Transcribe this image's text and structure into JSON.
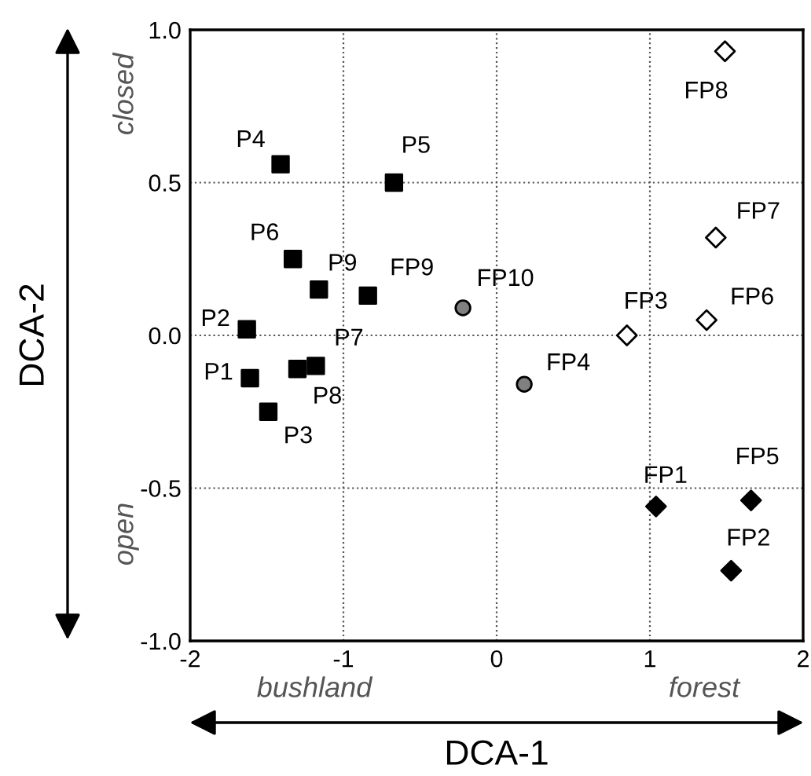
{
  "chart_data": {
    "type": "scatter",
    "xlabel": "DCA-1",
    "ylabel": "DCA-2",
    "xlim": [
      -2,
      2
    ],
    "xticks": [
      -2,
      -1,
      0,
      1,
      2
    ],
    "ylim": [
      -1.0,
      1.0
    ],
    "yticks": [
      {
        "value": -1.0,
        "label": "-1.0"
      },
      {
        "value": -0.5,
        "label": "-0.5"
      },
      {
        "value": 0.0,
        "label": "0.0"
      },
      {
        "value": 0.5,
        "label": "0.5"
      },
      {
        "value": 1.0,
        "label": "1.0"
      }
    ],
    "grid": true,
    "series": [
      {
        "marker": "square",
        "color": "#000000",
        "x": [
          -1.61,
          -1.63,
          -1.49,
          -1.41,
          -0.67,
          -1.33,
          -1.18,
          -1.3,
          -1.16,
          -0.84
        ],
        "values": [
          -0.14,
          0.02,
          -0.25,
          0.56,
          0.5,
          0.25,
          -0.1,
          -0.11,
          0.15,
          0.13
        ]
      },
      {
        "marker": "circle",
        "color": "#808080",
        "x": [
          0.18,
          -0.22
        ],
        "values": [
          -0.16,
          0.09
        ]
      },
      {
        "marker": "diamond",
        "color": "#ffffff",
        "x": [
          0.85,
          1.37,
          1.43,
          1.49
        ],
        "values": [
          0.0,
          0.05,
          0.32,
          0.93
        ]
      },
      {
        "marker": "diamond",
        "color": "#000000",
        "x": [
          1.04,
          1.66,
          1.53
        ],
        "values": [
          -0.56,
          -0.54,
          -0.77
        ]
      }
    ],
    "annotations": [
      {
        "text": "P1",
        "x": -1.61,
        "y": -0.14
      },
      {
        "text": "P2",
        "x": -1.63,
        "y": 0.02
      },
      {
        "text": "P3",
        "x": -1.49,
        "y": -0.25
      },
      {
        "text": "P4",
        "x": -1.41,
        "y": 0.56
      },
      {
        "text": "P5",
        "x": -0.67,
        "y": 0.5
      },
      {
        "text": "P6",
        "x": -1.33,
        "y": 0.25
      },
      {
        "text": "P7",
        "x": -1.18,
        "y": -0.1
      },
      {
        "text": "P8",
        "x": -1.3,
        "y": -0.11
      },
      {
        "text": "P9",
        "x": -1.16,
        "y": 0.15
      },
      {
        "text": "FP9",
        "x": -0.84,
        "y": 0.13
      },
      {
        "text": "FP4",
        "x": 0.18,
        "y": -0.16
      },
      {
        "text": "FP10",
        "x": -0.22,
        "y": 0.09
      },
      {
        "text": "FP3",
        "x": 0.85,
        "y": 0.0
      },
      {
        "text": "FP6",
        "x": 1.37,
        "y": 0.05
      },
      {
        "text": "FP7",
        "x": 1.43,
        "y": 0.32
      },
      {
        "text": "FP8",
        "x": 1.49,
        "y": 0.93
      },
      {
        "text": "FP1",
        "x": 1.04,
        "y": -0.56
      },
      {
        "text": "FP5",
        "x": 1.66,
        "y": -0.54
      },
      {
        "text": "FP2",
        "x": 1.53,
        "y": -0.77
      },
      "closed",
      "open",
      "bushland",
      "forest"
    ]
  }
}
